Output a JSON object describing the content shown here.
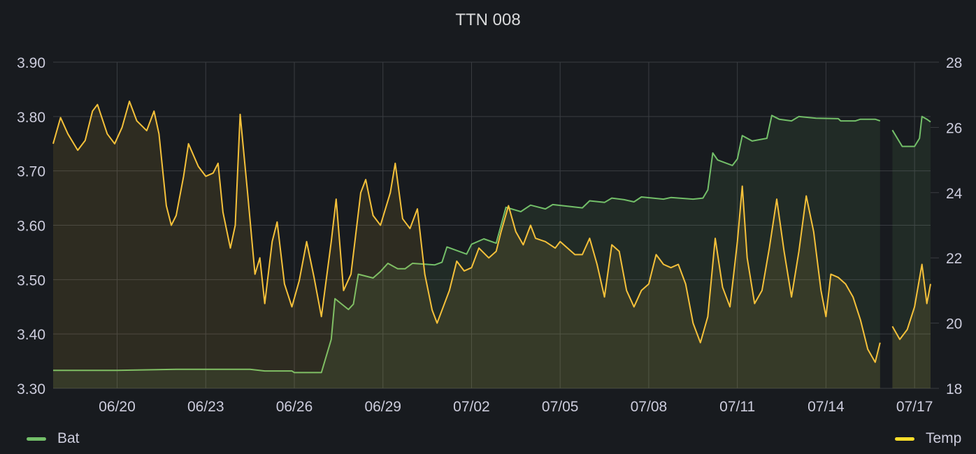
{
  "panel": {
    "title": "TTN 008"
  },
  "legend": [
    {
      "name": "Bat",
      "color": "#73bf69"
    },
    {
      "name": "Temp",
      "color": "#fade2a"
    }
  ],
  "colors": {
    "background": "#181b1f",
    "grid": "#3a3d42",
    "tick_text": "#ccccdc",
    "bat_line": "#73bf69",
    "temp_line": "#f5c13a"
  },
  "chart_data": {
    "type": "line",
    "title": "TTN 008",
    "x_start": "06/17 20:00",
    "x_end": "07/17 13:00",
    "x_tick_labels": [
      "06/20",
      "06/23",
      "06/26",
      "06/29",
      "07/02",
      "07/05",
      "07/08",
      "07/11",
      "07/14",
      "07/17"
    ],
    "y_left": {
      "ylim": [
        3.3,
        3.9
      ],
      "ticks": [
        "3.30",
        "3.40",
        "3.50",
        "3.60",
        "3.70",
        "3.80",
        "3.90"
      ]
    },
    "y_right": {
      "ylim": [
        18,
        28
      ],
      "ticks": [
        "18",
        "20",
        "22",
        "24",
        "26",
        "28"
      ]
    },
    "grid": true,
    "legend_position": "bottom",
    "series": [
      {
        "name": "Bat",
        "axis": "left",
        "fill": true,
        "points": [
          [
            "06/17 20:00",
            3.333
          ],
          [
            "06/20 00:00",
            3.333
          ],
          [
            "06/21 00:00",
            3.334
          ],
          [
            "06/22 00:00",
            3.335
          ],
          [
            "06/24 12:00",
            3.335
          ],
          [
            "06/25 00:00",
            3.332
          ],
          [
            "06/25 22:00",
            3.332
          ],
          [
            "06/26 00:00",
            3.329
          ],
          [
            "06/26 22:00",
            3.329
          ],
          [
            "06/27 06:00",
            3.39
          ],
          [
            "06/27 09:00",
            3.465
          ],
          [
            "06/27 20:00",
            3.445
          ],
          [
            "06/28 00:00",
            3.455
          ],
          [
            "06/28 04:00",
            3.51
          ],
          [
            "06/28 16:00",
            3.503
          ],
          [
            "06/28 22:00",
            3.515
          ],
          [
            "06/29 04:00",
            3.53
          ],
          [
            "06/29 12:00",
            3.52
          ],
          [
            "06/29 18:00",
            3.52
          ],
          [
            "06/30 00:00",
            3.53
          ],
          [
            "06/30 18:00",
            3.527
          ],
          [
            "07/01 00:00",
            3.532
          ],
          [
            "07/01 04:00",
            3.56
          ],
          [
            "07/01 20:00",
            3.547
          ],
          [
            "07/02 00:00",
            3.565
          ],
          [
            "07/02 10:00",
            3.575
          ],
          [
            "07/02 20:00",
            3.567
          ],
          [
            "07/03 00:00",
            3.6
          ],
          [
            "07/03 04:00",
            3.633
          ],
          [
            "07/03 16:00",
            3.625
          ],
          [
            "07/04 00:00",
            3.637
          ],
          [
            "07/04 12:00",
            3.63
          ],
          [
            "07/04 18:00",
            3.638
          ],
          [
            "07/05 06:00",
            3.635
          ],
          [
            "07/05 18:00",
            3.632
          ],
          [
            "07/06 00:00",
            3.645
          ],
          [
            "07/06 12:00",
            3.642
          ],
          [
            "07/06 18:00",
            3.65
          ],
          [
            "07/07 04:00",
            3.647
          ],
          [
            "07/07 12:00",
            3.643
          ],
          [
            "07/07 18:00",
            3.652
          ],
          [
            "07/08 12:00",
            3.648
          ],
          [
            "07/08 18:00",
            3.651
          ],
          [
            "07/09 12:00",
            3.648
          ],
          [
            "07/09 20:00",
            3.65
          ],
          [
            "07/10 00:00",
            3.665
          ],
          [
            "07/10 04:00",
            3.733
          ],
          [
            "07/10 08:00",
            3.72
          ],
          [
            "07/10 20:00",
            3.71
          ],
          [
            "07/11 00:00",
            3.722
          ],
          [
            "07/11 04:00",
            3.765
          ],
          [
            "07/11 12:00",
            3.755
          ],
          [
            "07/12 00:00",
            3.76
          ],
          [
            "07/12 04:00",
            3.802
          ],
          [
            "07/12 10:00",
            3.795
          ],
          [
            "07/12 20:00",
            3.792
          ],
          [
            "07/13 02:00",
            3.8
          ],
          [
            "07/13 16:00",
            3.797
          ],
          [
            "07/14 10:00",
            3.796
          ],
          [
            "07/14 12:00",
            3.792
          ],
          [
            "07/15 00:00",
            3.792
          ],
          [
            "07/15 04:00",
            3.795
          ],
          [
            "07/15 16:00",
            3.795
          ],
          [
            "07/15 20:00",
            3.792
          ],
          null,
          [
            "07/16 06:00",
            3.775
          ],
          [
            "07/16 14:00",
            3.745
          ],
          [
            "07/16 20:00",
            3.745
          ],
          [
            "07/17 00:00",
            3.745
          ],
          [
            "07/17 04:00",
            3.76
          ],
          [
            "07/17 06:00",
            3.8
          ],
          [
            "07/17 10:00",
            3.795
          ],
          [
            "07/17 13:00",
            3.79
          ]
        ]
      },
      {
        "name": "Temp",
        "axis": "right",
        "fill": true,
        "points": [
          [
            "06/17 20:00",
            25.5
          ],
          [
            "06/18 02:00",
            26.3
          ],
          [
            "06/18 08:00",
            25.8
          ],
          [
            "06/18 16:00",
            25.3
          ],
          [
            "06/18 22:00",
            25.6
          ],
          [
            "06/19 04:00",
            26.5
          ],
          [
            "06/19 08:00",
            26.7
          ],
          [
            "06/19 16:00",
            25.8
          ],
          [
            "06/19 22:00",
            25.5
          ],
          [
            "06/20 04:00",
            26.0
          ],
          [
            "06/20 10:00",
            26.8
          ],
          [
            "06/20 16:00",
            26.2
          ],
          [
            "06/21 00:00",
            25.9
          ],
          [
            "06/21 06:00",
            26.5
          ],
          [
            "06/21 10:00",
            25.8
          ],
          [
            "06/21 16:00",
            23.6
          ],
          [
            "06/21 20:00",
            23.0
          ],
          [
            "06/22 00:00",
            23.3
          ],
          [
            "06/22 06:00",
            24.5
          ],
          [
            "06/22 10:00",
            25.5
          ],
          [
            "06/22 18:00",
            24.8
          ],
          [
            "06/23 00:00",
            24.5
          ],
          [
            "06/23 06:00",
            24.6
          ],
          [
            "06/23 10:00",
            24.9
          ],
          [
            "06/23 14:00",
            23.4
          ],
          [
            "06/23 20:00",
            22.3
          ],
          [
            "06/24 00:00",
            23.0
          ],
          [
            "06/24 04:00",
            26.4
          ],
          [
            "06/24 10:00",
            24.0
          ],
          [
            "06/24 16:00",
            21.5
          ],
          [
            "06/24 20:00",
            22.0
          ],
          [
            "06/25 00:00",
            20.6
          ],
          [
            "06/25 06:00",
            22.5
          ],
          [
            "06/25 10:00",
            23.1
          ],
          [
            "06/25 16:00",
            21.2
          ],
          [
            "06/25 22:00",
            20.5
          ],
          [
            "06/26 04:00",
            21.3
          ],
          [
            "06/26 10:00",
            22.5
          ],
          [
            "06/26 16:00",
            21.4
          ],
          [
            "06/26 22:00",
            20.2
          ],
          [
            "06/27 06:00",
            22.5
          ],
          [
            "06/27 10:00",
            23.8
          ],
          [
            "06/27 16:00",
            21.0
          ],
          [
            "06/27 22:00",
            21.5
          ],
          [
            "06/28 06:00",
            24.0
          ],
          [
            "06/28 10:00",
            24.4
          ],
          [
            "06/28 16:00",
            23.3
          ],
          [
            "06/28 22:00",
            23.0
          ],
          [
            "06/29 06:00",
            24.0
          ],
          [
            "06/29 10:00",
            24.9
          ],
          [
            "06/29 16:00",
            23.2
          ],
          [
            "06/29 22:00",
            22.9
          ],
          [
            "06/30 04:00",
            23.5
          ],
          [
            "06/30 10:00",
            21.5
          ],
          [
            "06/30 16:00",
            20.4
          ],
          [
            "06/30 20:00",
            20.0
          ],
          [
            "07/01 06:00",
            21.0
          ],
          [
            "07/01 12:00",
            21.9
          ],
          [
            "07/01 18:00",
            21.6
          ],
          [
            "07/02 00:00",
            21.7
          ],
          [
            "07/02 06:00",
            22.3
          ],
          [
            "07/02 14:00",
            22.0
          ],
          [
            "07/02 20:00",
            22.2
          ],
          [
            "07/03 00:00",
            22.8
          ],
          [
            "07/03 06:00",
            23.6
          ],
          [
            "07/03 12:00",
            22.8
          ],
          [
            "07/03 18:00",
            22.4
          ],
          [
            "07/04 00:00",
            23.0
          ],
          [
            "07/04 04:00",
            22.6
          ],
          [
            "07/04 12:00",
            22.5
          ],
          [
            "07/04 20:00",
            22.3
          ],
          [
            "07/05 00:00",
            22.5
          ],
          [
            "07/05 06:00",
            22.3
          ],
          [
            "07/05 12:00",
            22.1
          ],
          [
            "07/05 18:00",
            22.1
          ],
          [
            "07/06 00:00",
            22.6
          ],
          [
            "07/06 06:00",
            21.8
          ],
          [
            "07/06 12:00",
            20.8
          ],
          [
            "07/06 18:00",
            22.4
          ],
          [
            "07/07 00:00",
            22.2
          ],
          [
            "07/07 06:00",
            21.0
          ],
          [
            "07/07 12:00",
            20.5
          ],
          [
            "07/07 18:00",
            21.0
          ],
          [
            "07/08 00:00",
            21.2
          ],
          [
            "07/08 06:00",
            22.1
          ],
          [
            "07/08 12:00",
            21.8
          ],
          [
            "07/08 18:00",
            21.7
          ],
          [
            "07/09 00:00",
            21.8
          ],
          [
            "07/09 06:00",
            21.2
          ],
          [
            "07/09 12:00",
            20.0
          ],
          [
            "07/09 18:00",
            19.4
          ],
          [
            "07/10 00:00",
            20.2
          ],
          [
            "07/10 06:00",
            22.6
          ],
          [
            "07/10 12:00",
            21.1
          ],
          [
            "07/10 18:00",
            20.5
          ],
          [
            "07/11 00:00",
            22.5
          ],
          [
            "07/11 04:00",
            24.2
          ],
          [
            "07/11 08:00",
            22.0
          ],
          [
            "07/11 14:00",
            20.6
          ],
          [
            "07/11 20:00",
            21.0
          ],
          [
            "07/12 02:00",
            22.3
          ],
          [
            "07/12 08:00",
            23.8
          ],
          [
            "07/12 14:00",
            22.2
          ],
          [
            "07/12 20:00",
            20.8
          ],
          [
            "07/13 02:00",
            22.2
          ],
          [
            "07/13 08:00",
            23.9
          ],
          [
            "07/13 14:00",
            22.8
          ],
          [
            "07/13 20:00",
            21.0
          ],
          [
            "07/14 00:00",
            20.2
          ],
          [
            "07/14 04:00",
            21.5
          ],
          [
            "07/14 10:00",
            21.4
          ],
          [
            "07/14 16:00",
            21.2
          ],
          [
            "07/14 22:00",
            20.8
          ],
          [
            "07/15 04:00",
            20.1
          ],
          [
            "07/15 10:00",
            19.2
          ],
          [
            "07/15 16:00",
            18.8
          ],
          [
            "07/15 20:00",
            19.4
          ],
          null,
          [
            "07/16 06:00",
            19.9
          ],
          [
            "07/16 12:00",
            19.5
          ],
          [
            "07/16 18:00",
            19.8
          ],
          [
            "07/17 00:00",
            20.5
          ],
          [
            "07/17 06:00",
            21.8
          ],
          [
            "07/17 10:00",
            20.6
          ],
          [
            "07/17 13:00",
            21.2
          ]
        ]
      }
    ]
  }
}
